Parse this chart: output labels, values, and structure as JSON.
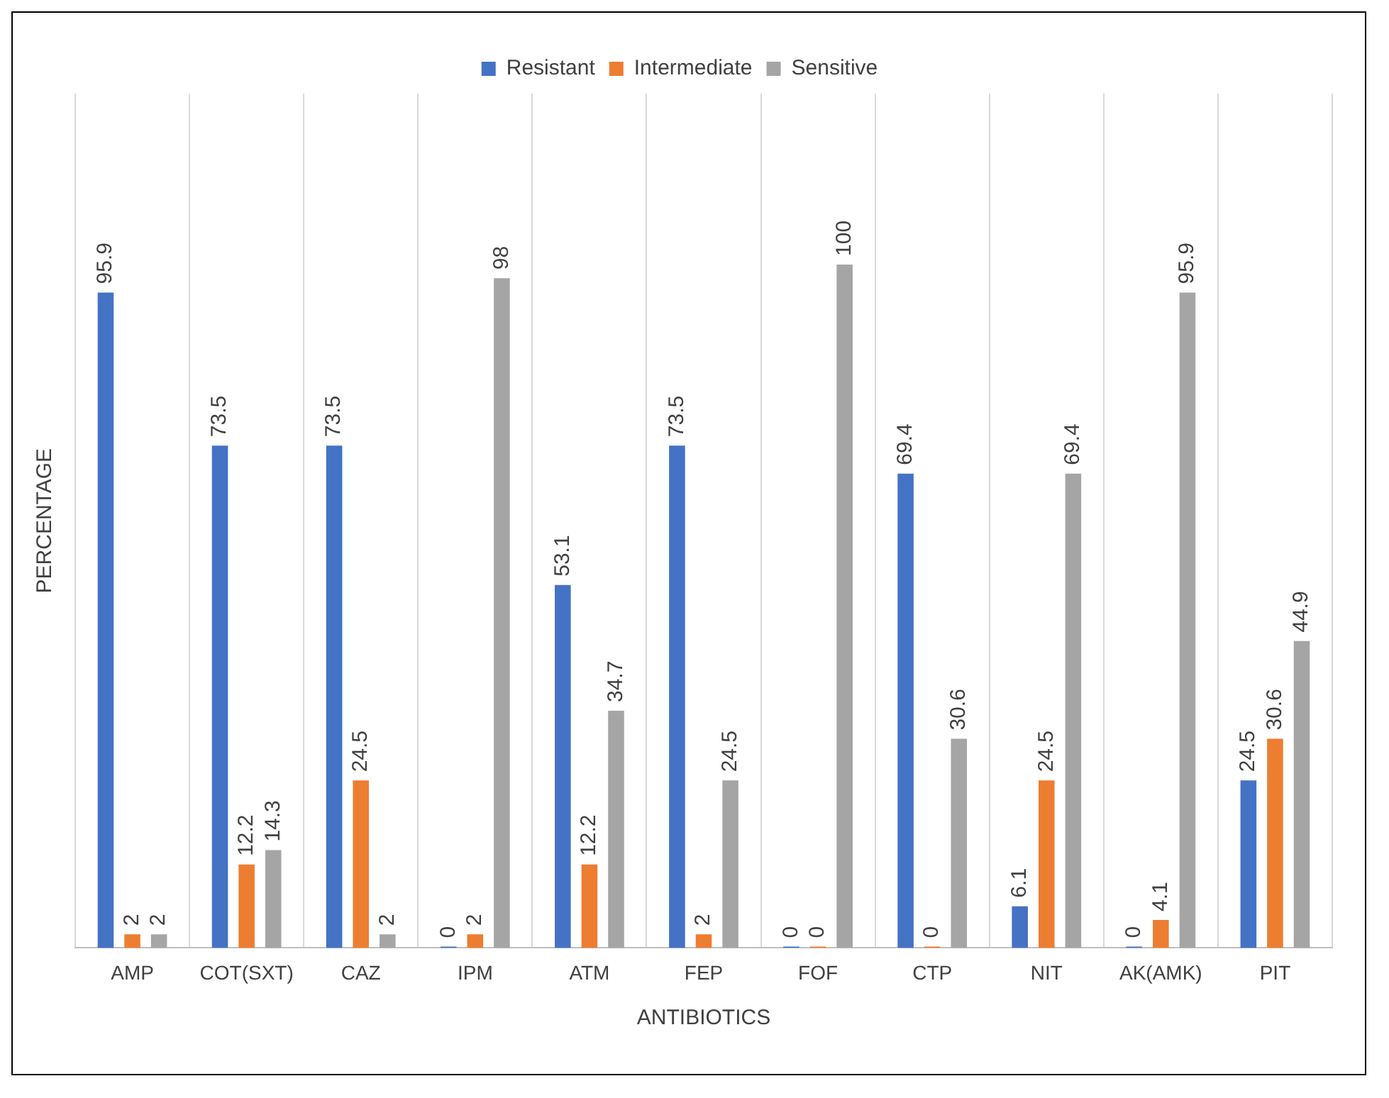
{
  "chart_data": {
    "type": "bar",
    "xlabel": "ANTIBIOTICS",
    "ylabel": "PERCENTAGE",
    "categories": [
      "AMP",
      "COT(SXT)",
      "CAZ",
      "IPM",
      "ATM",
      "FEP",
      "FOF",
      "CTP",
      "NIT",
      "AK(AMK)",
      "PIT"
    ],
    "series": [
      {
        "name": "Resistant",
        "color": "#4472c4",
        "values": [
          95.9,
          73.5,
          73.5,
          0,
          53.1,
          73.5,
          0,
          69.4,
          6.1,
          0,
          24.5
        ]
      },
      {
        "name": "Intermediate",
        "color": "#ed7d31",
        "values": [
          2,
          12.2,
          24.5,
          2,
          12.2,
          2,
          0,
          0,
          24.5,
          4.1,
          30.6
        ]
      },
      {
        "name": "Sensitive",
        "color": "#a5a5a5",
        "values": [
          2,
          14.3,
          2,
          98,
          34.7,
          24.5,
          100,
          30.6,
          69.4,
          95.9,
          44.9
        ]
      }
    ],
    "data_labels": true,
    "grid": "x",
    "legend": "top"
  }
}
